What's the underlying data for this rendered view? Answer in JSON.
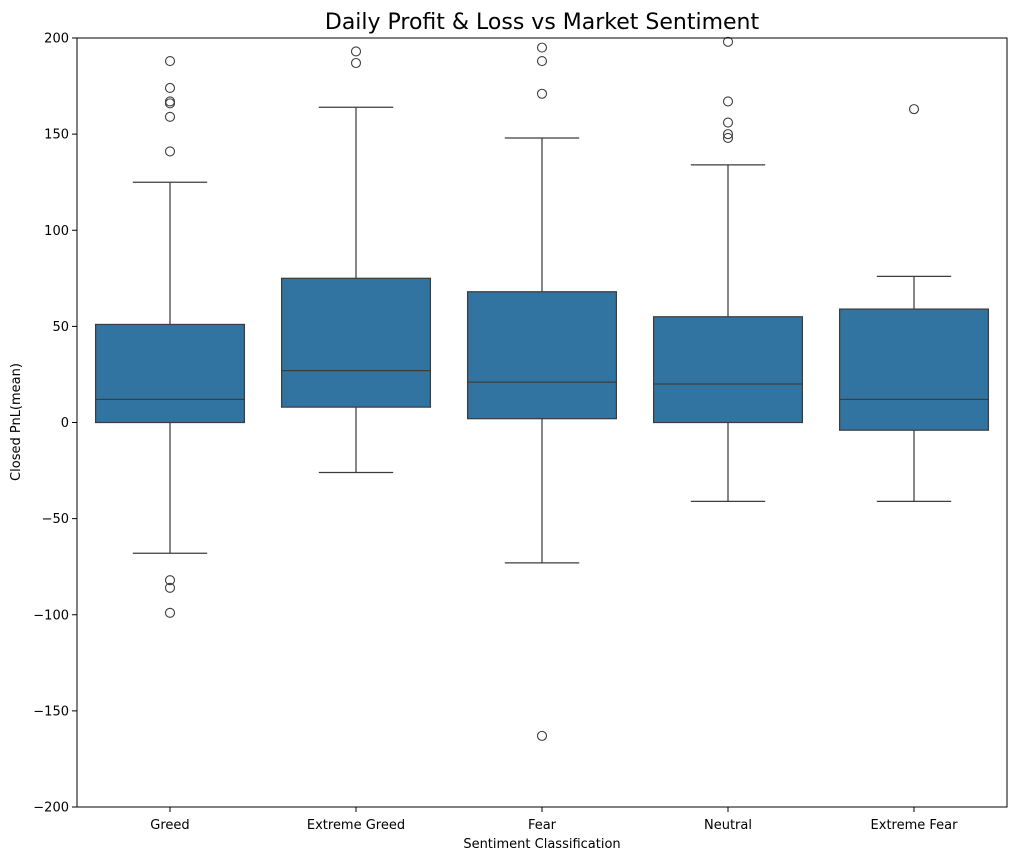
{
  "chart_data": {
    "type": "box",
    "title": "Daily Profit & Loss vs Market Sentiment",
    "xlabel": "Sentiment Classification",
    "ylabel": "Closed PnL(mean)",
    "ylim": [
      -200,
      200
    ],
    "yticks": [
      -200,
      -150,
      -100,
      -50,
      0,
      50,
      100,
      150,
      200
    ],
    "ytick_labels": [
      "−200",
      "−150",
      "−100",
      "−50",
      "0",
      "50",
      "100",
      "150",
      "200"
    ],
    "grid": false,
    "box_color": "#3274a1",
    "line_color": "#3d3d3d",
    "categories": [
      "Greed",
      "Extreme Greed",
      "Fear",
      "Neutral",
      "Extreme Fear"
    ],
    "boxes": [
      {
        "category": "Greed",
        "q1": 0,
        "median": 12,
        "q3": 51,
        "whisker_low": -68,
        "whisker_high": 125,
        "outliers": [
          188,
          174,
          167,
          166,
          159,
          141,
          -82,
          -86,
          -99
        ]
      },
      {
        "category": "Extreme Greed",
        "q1": 8,
        "median": 27,
        "q3": 75,
        "whisker_low": -26,
        "whisker_high": 164,
        "outliers": [
          193,
          187
        ]
      },
      {
        "category": "Fear",
        "q1": 2,
        "median": 21,
        "q3": 68,
        "whisker_low": -73,
        "whisker_high": 148,
        "outliers": [
          195,
          188,
          171,
          -163
        ]
      },
      {
        "category": "Neutral",
        "q1": 0,
        "median": 20,
        "q3": 55,
        "whisker_low": -41,
        "whisker_high": 134,
        "outliers": [
          198,
          167,
          156,
          150,
          148
        ]
      },
      {
        "category": "Extreme Fear",
        "q1": -4,
        "median": 12,
        "q3": 59,
        "whisker_low": -41,
        "whisker_high": 76,
        "outliers": [
          163
        ]
      }
    ]
  }
}
